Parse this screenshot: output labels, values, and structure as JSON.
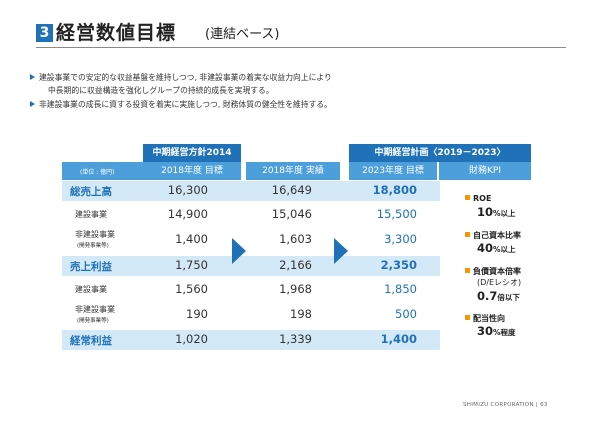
{
  "header": {
    "number": "3",
    "title": "経営数値目標",
    "subtitle": "(連結ベース)"
  },
  "bullets": [
    "建設事業での安定的な収益基盤を維持しつつ, 非建設事業の着実な収益力向上により",
    "中長期的に収益構造を強化しグループの持続的成長を実現する。",
    "非建設事業の成長に資する投資を着実に実施しつつ, 財務体質の健全性を維持する。"
  ],
  "table": {
    "unit": "(単位 : 億円)",
    "plan2014_header": "中期経営方針2014",
    "col1_header": "2018年度 目標",
    "col2_header": "2018年度 実績",
    "plan2019_header": "中期経営計画〈2019－2023〉",
    "col3_header": "2023年度 目標",
    "kpi_header": "財務KPI",
    "rows": [
      {
        "label": "総売上高",
        "sub": "",
        "target2018": "16,300",
        "actual2018": "16,649",
        "target2023": "18,800"
      },
      {
        "label": "建設事業",
        "sub": "",
        "target2018": "14,900",
        "actual2018": "15,046",
        "target2023": "15,500"
      },
      {
        "label": "非建設事業",
        "sub": "(開発事業等)",
        "target2018": "1,400",
        "actual2018": "1,603",
        "target2023": "3,300"
      },
      {
        "label": "売上利益",
        "sub": "",
        "target2018": "1,750",
        "actual2018": "2,166",
        "target2023": "2,350"
      },
      {
        "label": "建設事業",
        "sub": "",
        "target2018": "1,560",
        "actual2018": "1,968",
        "target2023": "1,850"
      },
      {
        "label": "非建設事業",
        "sub": "(開発事業等)",
        "target2018": "190",
        "actual2018": "198",
        "target2023": "500"
      },
      {
        "label": "経常利益",
        "sub": "",
        "target2018": "1,020",
        "actual2018": "1,339",
        "target2023": "1,400"
      }
    ]
  },
  "kpi": [
    {
      "name": "ROE",
      "name2": "",
      "value": "10",
      "unit": "%以上"
    },
    {
      "name": "自己資本比率",
      "name2": "",
      "value": "40",
      "unit": "%以上"
    },
    {
      "name": "負債資本倍率",
      "name2": "(D/Eレシオ)",
      "value": "0.7",
      "unit": "倍以下"
    },
    {
      "name": "配当性向",
      "name2": "",
      "value": "30",
      "unit": "%程度"
    }
  ],
  "footer": "SHIMIZU CORPORATION | 63",
  "colors": {
    "accent": "#1f72b8",
    "band": "#d4e9f7",
    "kpi_marker": "#f39800"
  }
}
